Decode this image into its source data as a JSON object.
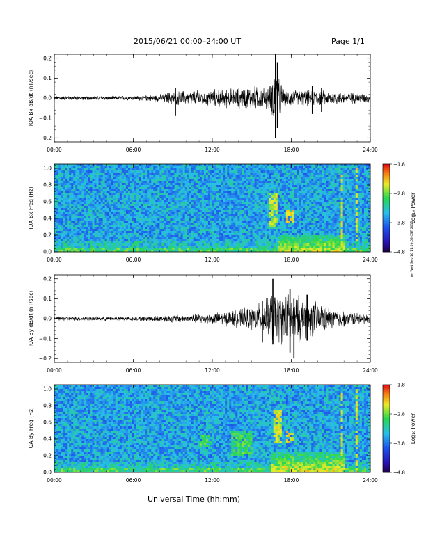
{
  "header": {
    "title": "2015/06/21  00:00–24:00 UT",
    "page": "Page 1/1"
  },
  "footer": {
    "x_axis_label": "Universal Time (hh:mm)",
    "stamp": "rel Wed Sep 16 11:06:03 CST 2015"
  },
  "chart_data": [
    {
      "type": "line",
      "panel": "bx-dbdt",
      "ylabel": "IQA Bx dB/dt (nT/sec)",
      "xticks": [
        "00:00",
        "06:00",
        "12:00",
        "18:00",
        "24:00"
      ],
      "yticks": [
        "0.2",
        "0.1",
        "0.0",
        "−0.1",
        "−0.2"
      ],
      "xlim": [
        0,
        24
      ],
      "ylim": [
        -0.22,
        0.22
      ],
      "envelope_x": [
        0,
        4,
        6,
        8,
        9,
        11,
        12,
        14,
        15,
        16,
        16.5,
        16.8,
        17.0,
        17.5,
        18,
        19,
        20,
        21,
        22,
        23,
        24
      ],
      "envelope_y": [
        0.012,
        0.012,
        0.012,
        0.02,
        0.04,
        0.045,
        0.05,
        0.06,
        0.07,
        0.06,
        0.08,
        0.22,
        0.12,
        0.05,
        0.05,
        0.045,
        0.045,
        0.04,
        0.035,
        0.03,
        0.025
      ],
      "spikes": [
        {
          "x": 16.8,
          "ymin": -0.2,
          "ymax": 0.22
        },
        {
          "x": 16.95,
          "ymin": -0.15,
          "ymax": 0.18
        },
        {
          "x": 9.2,
          "ymin": -0.09,
          "ymax": 0.05
        },
        {
          "x": 19.6,
          "ymin": -0.08,
          "ymax": 0.06
        },
        {
          "x": 20.3,
          "ymin": -0.07,
          "ymax": 0.05
        }
      ]
    },
    {
      "type": "heatmap",
      "panel": "bx-spectrogram",
      "ylabel": "IQA Bx Freq (Hz)",
      "xticks": [
        "00:00",
        "06:00",
        "12:00",
        "18:00",
        "24:00"
      ],
      "yticks": [
        "1.0",
        "0.8",
        "0.6",
        "0.4",
        "0.2",
        "0.0"
      ],
      "xlim": [
        0,
        24
      ],
      "ylim": [
        0,
        1.05
      ],
      "colorbar": {
        "label": "Log₁₀ Power",
        "ticks": [
          "−1.8",
          "−2.8",
          "−3.8",
          "−4.8"
        ],
        "range": [
          -4.8,
          -1.8
        ]
      },
      "features": [
        {
          "kind": "pulsation",
          "t": [
            16.3,
            17.0
          ],
          "f": [
            0.3,
            0.7
          ],
          "power": -2.6
        },
        {
          "kind": "pulsation",
          "t": [
            17.6,
            18.2
          ],
          "f": [
            0.35,
            0.5
          ],
          "power": -2.4
        },
        {
          "kind": "low-freq-band",
          "t": [
            17.0,
            22.0
          ],
          "f": [
            0.0,
            0.2
          ],
          "power": -2.5
        },
        {
          "kind": "vertical-line",
          "t": [
            21.8,
            21.9
          ],
          "f": [
            0.0,
            0.95
          ],
          "power": -2.5
        },
        {
          "kind": "vertical-line",
          "t": [
            22.9,
            23.0
          ],
          "f": [
            0.0,
            1.0
          ],
          "power": -2.5
        }
      ]
    },
    {
      "type": "line",
      "panel": "by-dbdt",
      "ylabel": "IQA By dB/dt (nT/sec)",
      "xticks": [
        "00:00",
        "06:00",
        "12:00",
        "18:00",
        "24:00"
      ],
      "yticks": [
        "0.2",
        "0.1",
        "0.0",
        "−0.1",
        "−0.2"
      ],
      "xlim": [
        0,
        24
      ],
      "ylim": [
        -0.22,
        0.22
      ],
      "envelope_x": [
        0,
        4,
        6,
        8,
        10,
        12,
        13,
        14,
        15,
        16,
        16.5,
        17,
        18,
        19,
        20,
        21,
        22,
        23,
        24
      ],
      "envelope_y": [
        0.012,
        0.012,
        0.012,
        0.018,
        0.025,
        0.03,
        0.04,
        0.05,
        0.07,
        0.1,
        0.15,
        0.14,
        0.14,
        0.12,
        0.09,
        0.06,
        0.045,
        0.035,
        0.025
      ],
      "spikes": [
        {
          "x": 16.6,
          "ymin": -0.13,
          "ymax": 0.2
        },
        {
          "x": 17.9,
          "ymin": -0.17,
          "ymax": 0.15
        },
        {
          "x": 18.2,
          "ymin": -0.2,
          "ymax": 0.1
        },
        {
          "x": 15.8,
          "ymin": -0.12,
          "ymax": 0.09
        },
        {
          "x": 19.2,
          "ymin": -0.11,
          "ymax": 0.12
        }
      ]
    },
    {
      "type": "heatmap",
      "panel": "by-spectrogram",
      "ylabel": "IQA By Freq (Hz)",
      "xticks": [
        "00:00",
        "06:00",
        "12:00",
        "18:00",
        "24:00"
      ],
      "yticks": [
        "1.0",
        "0.8",
        "0.6",
        "0.4",
        "0.2",
        "0.0"
      ],
      "xlim": [
        0,
        24
      ],
      "ylim": [
        0,
        1.05
      ],
      "colorbar": {
        "label": "Log₁₀ Power",
        "ticks": [
          "−1.8",
          "−2.8",
          "−3.8",
          "−4.8"
        ],
        "range": [
          -4.8,
          -1.8
        ]
      },
      "features": [
        {
          "kind": "pulsation",
          "t": [
            11.0,
            12.0
          ],
          "f": [
            0.3,
            0.45
          ],
          "power": -2.9
        },
        {
          "kind": "pulsation",
          "t": [
            13.5,
            15.0
          ],
          "f": [
            0.2,
            0.5
          ],
          "power": -2.9
        },
        {
          "kind": "pulsation",
          "t": [
            16.6,
            17.2
          ],
          "f": [
            0.35,
            0.75
          ],
          "power": -2.5
        },
        {
          "kind": "pulsation",
          "t": [
            17.6,
            18.2
          ],
          "f": [
            0.35,
            0.5
          ],
          "power": -2.4
        },
        {
          "kind": "low-freq-band",
          "t": [
            16.5,
            22.0
          ],
          "f": [
            0.0,
            0.25
          ],
          "power": -2.4
        },
        {
          "kind": "vertical-line",
          "t": [
            21.8,
            21.9
          ],
          "f": [
            0.0,
            0.95
          ],
          "power": -2.5
        },
        {
          "kind": "vertical-line",
          "t": [
            22.9,
            23.0
          ],
          "f": [
            0.0,
            1.0
          ],
          "power": -2.5
        }
      ]
    }
  ]
}
